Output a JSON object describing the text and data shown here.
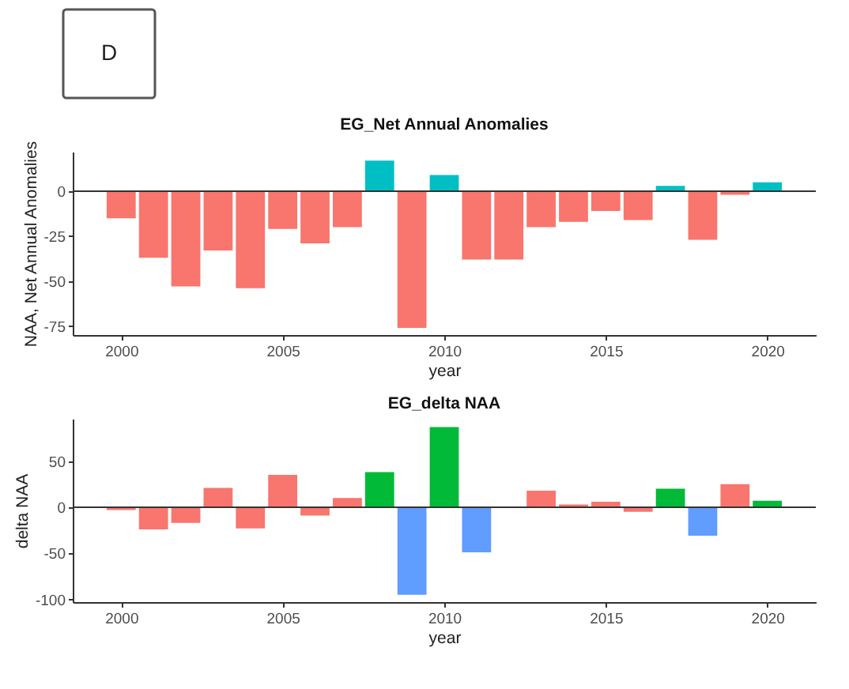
{
  "chart_data": [
    {
      "type": "bar",
      "title": "EG_Net Annual Anomalies",
      "xlabel": "year",
      "ylabel": "NAA, Net Annual Anomalies",
      "annotations": [
        "D"
      ],
      "x": [
        2000,
        2001,
        2002,
        2003,
        2004,
        2005,
        2006,
        2007,
        2008,
        2009,
        2010,
        2011,
        2012,
        2013,
        2014,
        2015,
        2016,
        2017,
        2018,
        2019,
        2020
      ],
      "values": [
        -15,
        -37,
        -53,
        -33,
        -54,
        -21,
        -29,
        -20,
        17,
        -76,
        9,
        -38,
        -38,
        -20,
        -17,
        -11,
        -16,
        3,
        -27,
        -2,
        5
      ],
      "colors": [
        "#f8766d",
        "#f8766d",
        "#f8766d",
        "#f8766d",
        "#f8766d",
        "#f8766d",
        "#f8766d",
        "#f8766d",
        "#00bfc4",
        "#f8766d",
        "#00bfc4",
        "#f8766d",
        "#f8766d",
        "#f8766d",
        "#f8766d",
        "#f8766d",
        "#f8766d",
        "#00bfc4",
        "#f8766d",
        "#f8766d",
        "#00bfc4"
      ],
      "xlim": [
        1998.5,
        2021.5
      ],
      "xticks": [
        2000,
        2005,
        2010,
        2015,
        2020
      ],
      "ylim": [
        -80,
        22
      ],
      "yticks": [
        -75,
        -50,
        -25,
        0
      ],
      "ref_lines": [
        {
          "axis": "y",
          "value": 0,
          "color": "#333333"
        }
      ]
    },
    {
      "type": "bar",
      "title": "EG_delta NAA",
      "xlabel": "year",
      "ylabel": "delta NAA",
      "x": [
        2000,
        2001,
        2002,
        2003,
        2004,
        2005,
        2006,
        2007,
        2008,
        2009,
        2010,
        2011,
        2012,
        2013,
        2014,
        2015,
        2016,
        2017,
        2018,
        2019,
        2020
      ],
      "values": [
        -3,
        -24,
        -17,
        21,
        -23,
        35,
        -9,
        10,
        38,
        -95,
        87,
        -49,
        null,
        18,
        3,
        6,
        -5,
        20,
        -31,
        25,
        7
      ],
      "colors": [
        "#f8766d",
        "#f8766d",
        "#f8766d",
        "#f8766d",
        "#f8766d",
        "#f8766d",
        "#f8766d",
        "#f8766d",
        "#00ba38",
        "#619cff",
        "#00ba38",
        "#619cff",
        "#f8766d",
        "#f8766d",
        "#f8766d",
        "#f8766d",
        "#f8766d",
        "#00ba38",
        "#619cff",
        "#f8766d",
        "#00ba38"
      ],
      "xlim": [
        1998.5,
        2021.5
      ],
      "xticks": [
        2000,
        2005,
        2010,
        2015,
        2020
      ],
      "ylim": [
        -103,
        96
      ],
      "yticks": [
        -100,
        -50,
        0,
        50
      ],
      "ref_lines": [
        {
          "axis": "y",
          "value": 0,
          "color": "#333333"
        }
      ]
    }
  ]
}
